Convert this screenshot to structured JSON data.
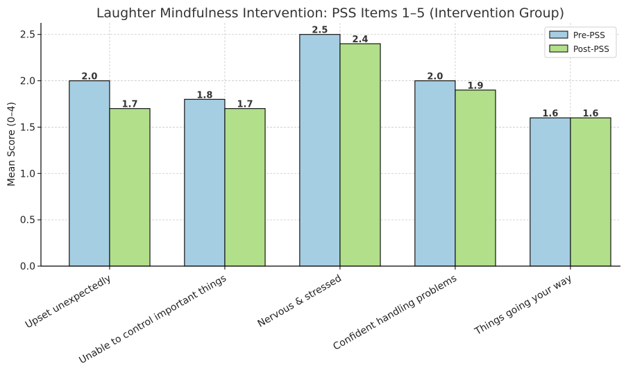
{
  "chart_data": {
    "type": "bar",
    "title": "Laughter Mindfulness Intervention: PSS Items 1–5 (Intervention Group)",
    "xlabel": "",
    "ylabel": "Mean Score (0–4)",
    "categories": [
      "Upset unexpectedly",
      "Unable to control important things",
      "Nervous & stressed",
      "Confident handling problems",
      "Things going your way"
    ],
    "series": [
      {
        "name": "Pre-PSS",
        "values": [
          2.0,
          1.8,
          2.5,
          2.0,
          1.6
        ],
        "labels": [
          "2.0",
          "1.8",
          "2.5",
          "2.0",
          "1.6"
        ],
        "color": "#a6cee3"
      },
      {
        "name": "Post-PSS",
        "values": [
          1.7,
          1.7,
          2.4,
          1.9,
          1.6
        ],
        "labels": [
          "1.7",
          "1.7",
          "2.4",
          "1.9",
          "1.6"
        ],
        "color": "#b2df8a"
      }
    ],
    "ylim": [
      0,
      2.625
    ],
    "yticks": [
      "0.0",
      "0.5",
      "1.0",
      "1.5",
      "2.0",
      "2.5"
    ],
    "grid": true,
    "legend": "top-right"
  }
}
